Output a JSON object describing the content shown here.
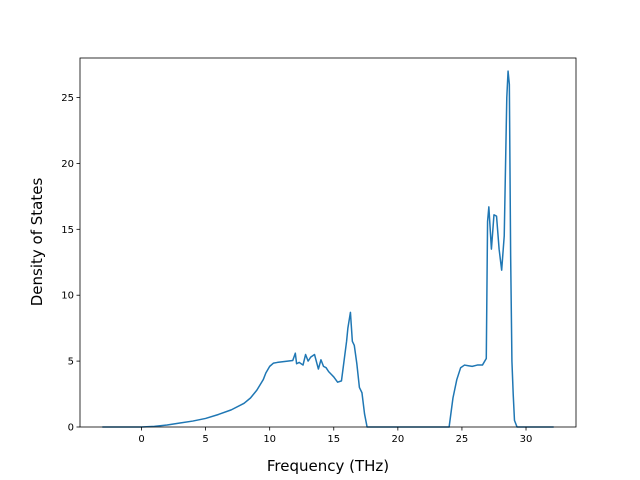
{
  "chart_data": {
    "type": "line",
    "title": "",
    "xlabel": "Frequency (THz)",
    "ylabel": "Density of States",
    "xlim": [
      -4.8,
      33.9
    ],
    "ylim": [
      0,
      28
    ],
    "xticks": [
      0,
      5,
      10,
      15,
      20,
      25,
      30
    ],
    "yticks": [
      0,
      5,
      10,
      15,
      20,
      25
    ],
    "grid": false,
    "legend": "none",
    "line_color": "#1f77b4",
    "series": [
      {
        "x": [
          -3.0,
          -1.0,
          0.0,
          1.0,
          2.0,
          3.0,
          4.0,
          5.0,
          6.0,
          7.0,
          8.0,
          8.5,
          9.0,
          9.5,
          9.7,
          10.0,
          10.3,
          10.6,
          11.0,
          11.4,
          11.8,
          12.0,
          12.1,
          12.3,
          12.6,
          12.8,
          13.0,
          13.2,
          13.5,
          13.8,
          14.0,
          14.2,
          14.4,
          14.6,
          14.8,
          15.0,
          15.3,
          15.6,
          15.8,
          16.0,
          16.1,
          16.3,
          16.45,
          16.6,
          16.8,
          17.0,
          17.2,
          17.4,
          17.6,
          17.8,
          18.0,
          20.0,
          22.0,
          23.5,
          24.0,
          24.3,
          24.6,
          24.9,
          25.2,
          25.5,
          25.8,
          26.2,
          26.6,
          26.9,
          27.0,
          27.1,
          27.3,
          27.5,
          27.7,
          27.9,
          28.1,
          28.3,
          28.5,
          28.6,
          28.7,
          28.8,
          28.9,
          29.0,
          29.1,
          29.3,
          29.6,
          30.0,
          32.1
        ],
        "y": [
          0.0,
          0.0,
          0.0,
          0.05,
          0.15,
          0.3,
          0.45,
          0.65,
          0.95,
          1.3,
          1.8,
          2.2,
          2.8,
          3.6,
          4.1,
          4.6,
          4.85,
          4.9,
          4.95,
          5.0,
          5.05,
          5.6,
          4.8,
          4.9,
          4.7,
          5.5,
          5.0,
          5.3,
          5.5,
          4.4,
          5.1,
          4.6,
          4.5,
          4.2,
          4.0,
          3.8,
          3.4,
          3.5,
          5.0,
          6.5,
          7.5,
          8.7,
          6.5,
          6.2,
          4.8,
          3.0,
          2.6,
          1.0,
          0.0,
          0.0,
          0.0,
          0.0,
          0.0,
          0.0,
          0.0,
          2.2,
          3.6,
          4.5,
          4.7,
          4.65,
          4.6,
          4.7,
          4.7,
          5.2,
          15.6,
          16.7,
          13.5,
          16.1,
          16.0,
          13.5,
          11.9,
          14.5,
          25.0,
          27.0,
          26.0,
          13.0,
          5.0,
          2.5,
          0.5,
          0.0,
          0.0,
          0.0,
          0.0
        ]
      }
    ]
  }
}
